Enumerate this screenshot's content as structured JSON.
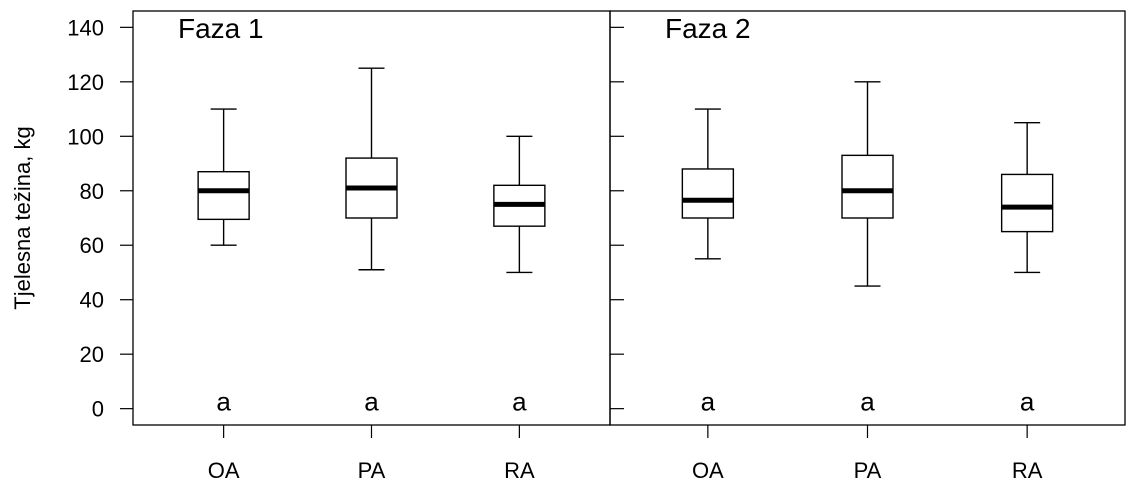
{
  "chart_data": {
    "type": "boxplot",
    "ylabel": "Tjelesna težina, kg",
    "ylim": [
      -6,
      146
    ],
    "yticks": [
      0,
      20,
      40,
      60,
      80,
      100,
      120,
      140
    ],
    "categories": [
      "OA",
      "PA",
      "RA"
    ],
    "panels": [
      {
        "title": "Faza 1",
        "boxes": [
          {
            "category": "OA",
            "min": 60,
            "q1": 69.5,
            "median": 80,
            "q3": 87,
            "max": 110,
            "letter": "a"
          },
          {
            "category": "PA",
            "min": 51,
            "q1": 70,
            "median": 81,
            "q3": 92,
            "max": 125,
            "letter": "a"
          },
          {
            "category": "RA",
            "min": 50,
            "q1": 67,
            "median": 75,
            "q3": 82,
            "max": 100,
            "letter": "a"
          }
        ]
      },
      {
        "title": "Faza 2",
        "boxes": [
          {
            "category": "OA",
            "min": 55,
            "q1": 70,
            "median": 76.5,
            "q3": 88,
            "max": 110,
            "letter": "a"
          },
          {
            "category": "PA",
            "min": 45,
            "q1": 70,
            "median": 80,
            "q3": 93,
            "max": 120,
            "letter": "a"
          },
          {
            "category": "RA",
            "min": 50,
            "q1": 65,
            "median": 74,
            "q3": 86,
            "max": 105,
            "letter": "a"
          }
        ]
      }
    ]
  }
}
